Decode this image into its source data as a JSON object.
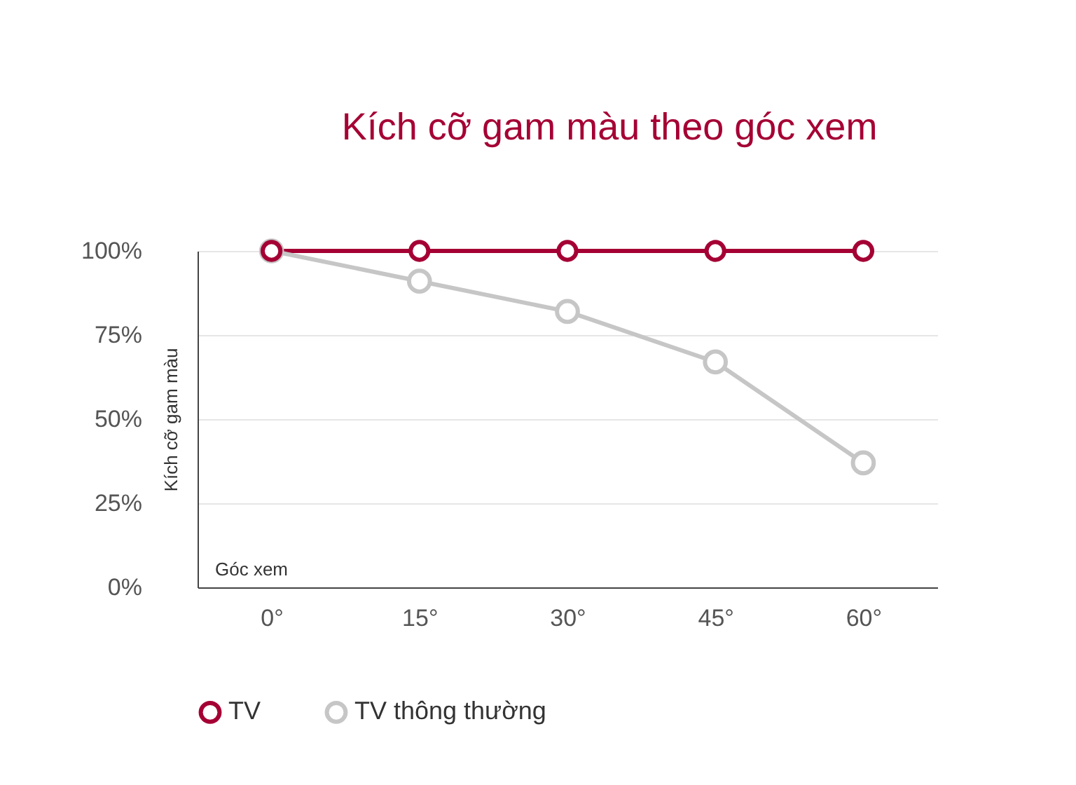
{
  "chart_data": {
    "type": "line",
    "title": "Kích cỡ gam màu theo góc xem",
    "xlabel": "Góc xem",
    "ylabel": "Kích cỡ gam màu",
    "categories": [
      "0°",
      "15°",
      "30°",
      "45°",
      "60°"
    ],
    "series": [
      {
        "name": "TV",
        "color": "#a50034",
        "values": [
          100,
          100,
          100,
          100,
          100
        ]
      },
      {
        "name": "TV thông thường",
        "color": "#c6c6c6",
        "values": [
          100,
          91,
          82,
          67,
          37
        ]
      }
    ],
    "ylim": [
      0,
      100
    ],
    "yticks": [
      {
        "value": 0,
        "label": "0%"
      },
      {
        "value": 25,
        "label": "25%"
      },
      {
        "value": 50,
        "label": "50%"
      },
      {
        "value": 75,
        "label": "75%"
      },
      {
        "value": 100,
        "label": "100%"
      }
    ],
    "grid": "y",
    "legend": "bottom",
    "marker": "circle",
    "line_style": "solid"
  }
}
